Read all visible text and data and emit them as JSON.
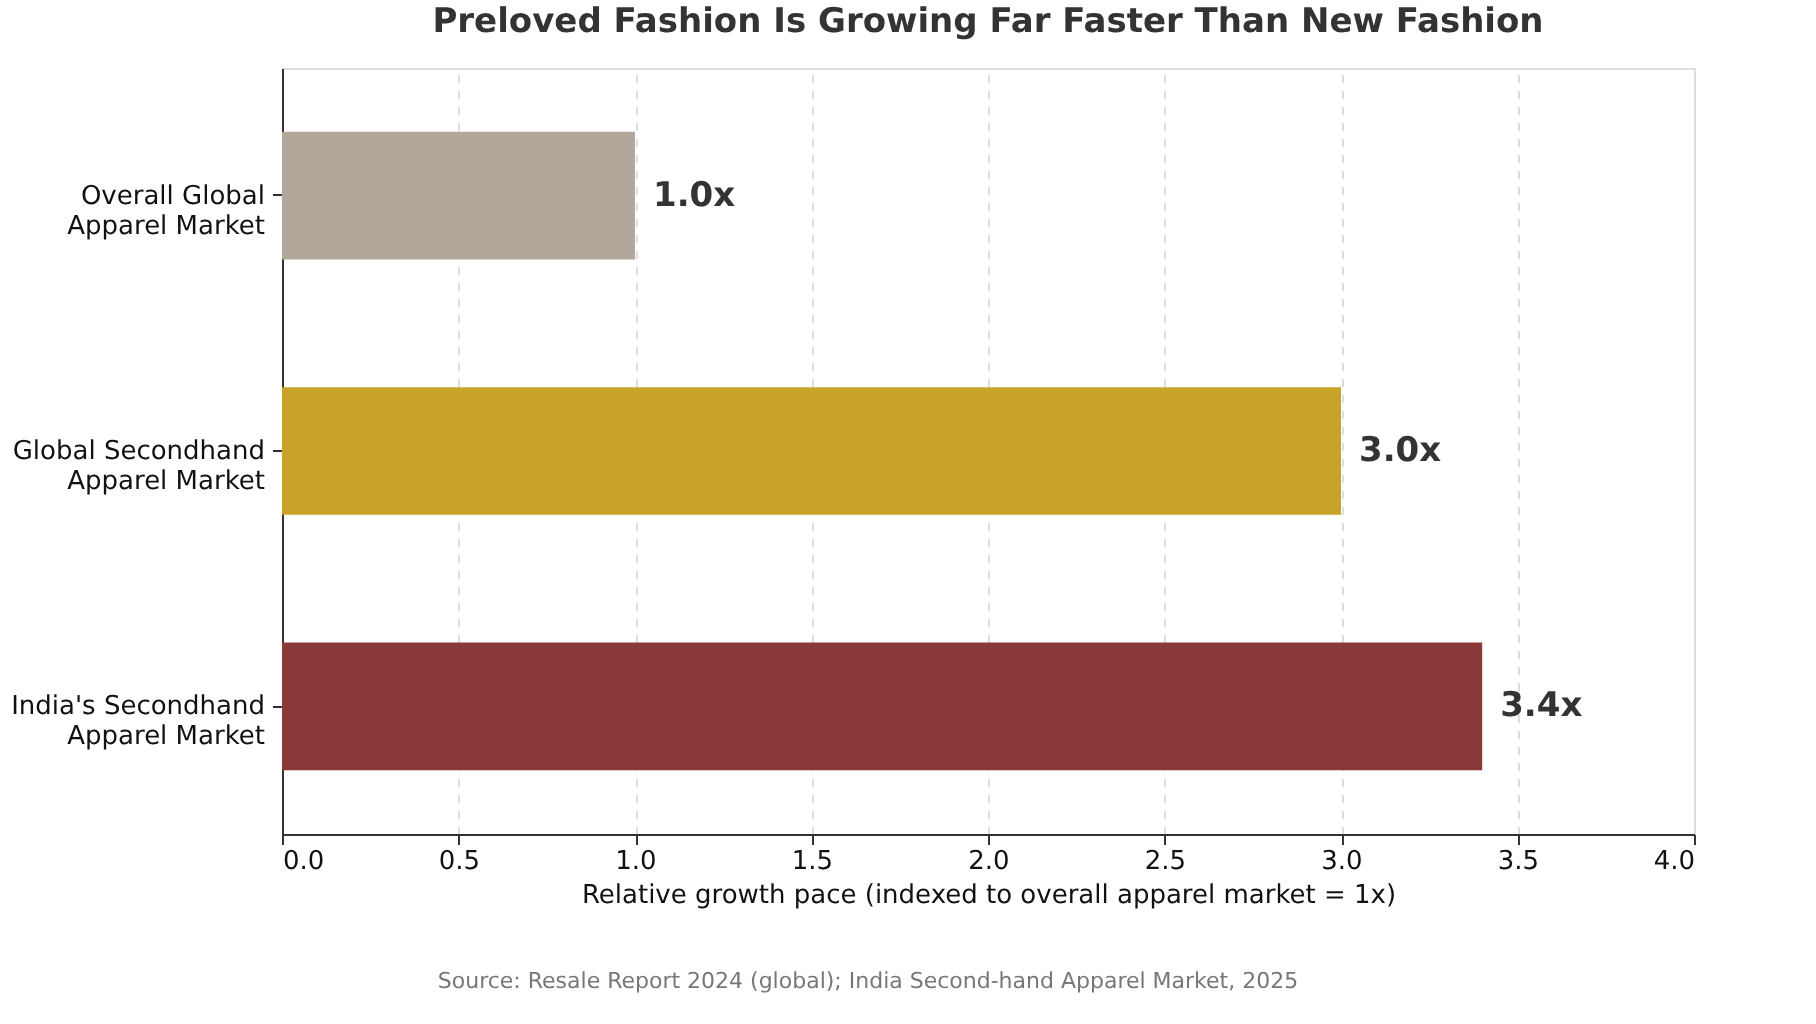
{
  "chart_data": {
    "type": "bar",
    "orientation": "horizontal",
    "title": "Preloved Fashion Is Growing Far Faster Than New Fashion",
    "categories": [
      "Overall Global\nApparel Market",
      "Global Secondhand\nApparel Market",
      "India's Secondhand\nApparel Market"
    ],
    "values": [
      1.0,
      3.0,
      3.4
    ],
    "colors": [
      "#b3a69a",
      "#c9a22a",
      "#8b3a3a"
    ],
    "value_labels": [
      "1.0x",
      "3.0x",
      "3.4x"
    ],
    "xlabel": "Relative growth pace (indexed to overall apparel market = 1x)",
    "xlim": [
      0,
      4.0
    ],
    "xticks": [
      {
        "value": 0,
        "label": "0.0"
      },
      0.5,
      {
        "value": 1,
        "label": "1.0"
      },
      1.5,
      {
        "value": 2,
        "label": "2.0"
      },
      2.5,
      {
        "value": 3,
        "label": "3.0"
      },
      3.5,
      {
        "value": 4,
        "label": "4.0"
      }
    ],
    "grid": "x",
    "annotations": [
      "Source: Resale Report 2024 (global); India Second-hand Apparel Market, 2025"
    ]
  }
}
